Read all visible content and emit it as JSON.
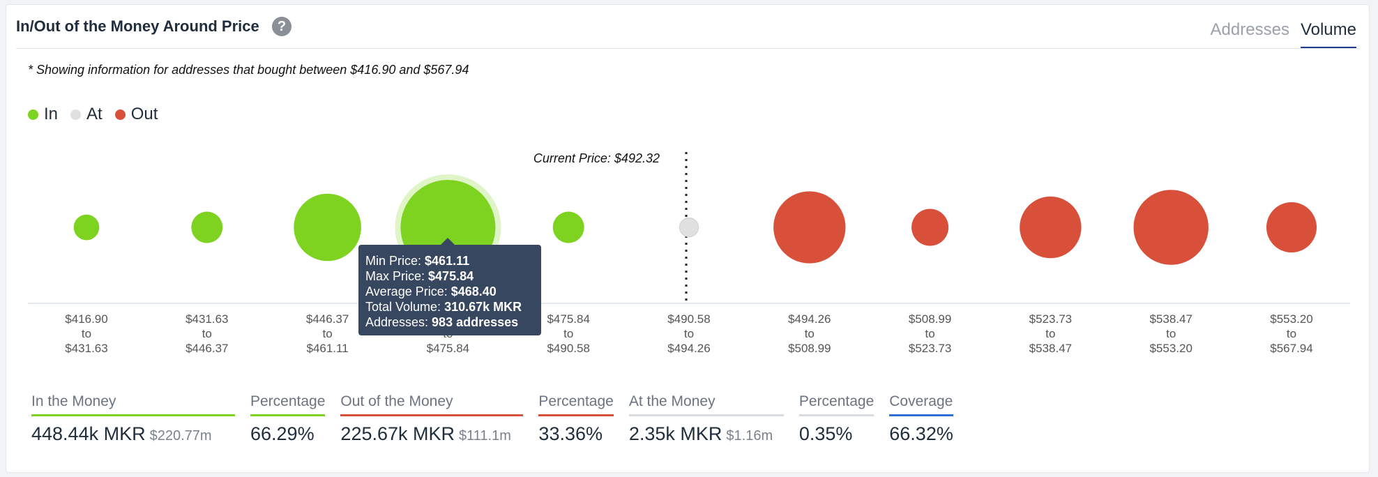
{
  "header": {
    "title": "In/Out of the Money Around Price",
    "help_icon": "?",
    "tabs": [
      "Addresses",
      "Volume"
    ],
    "active_tab": "Volume"
  },
  "note": "* Showing information for addresses that bought between $416.90 and $567.94",
  "legend": [
    {
      "label": "In",
      "color": "#7ed321"
    },
    {
      "label": "At",
      "color": "#e0e0e0"
    },
    {
      "label": "Out",
      "color": "#d9503a"
    }
  ],
  "current_price_label": "Current Price: $492.32",
  "tooltip": {
    "lines": [
      {
        "label": "Min Price: ",
        "value": "$461.11"
      },
      {
        "label": "Max Price: ",
        "value": "$475.84"
      },
      {
        "label": "Average Price: ",
        "value": "$468.40"
      },
      {
        "label": "Total Volume: ",
        "value": "310.67k MKR"
      },
      {
        "label": "Addresses: ",
        "value": "983 addresses"
      }
    ]
  },
  "chart_data": {
    "type": "scatter",
    "current_price": 492.32,
    "buckets": [
      {
        "from": "$416.90",
        "to": "$431.63",
        "status": "in",
        "relative_size": 0.27
      },
      {
        "from": "$431.63",
        "to": "$446.37",
        "status": "in",
        "relative_size": 0.33
      },
      {
        "from": "$446.37",
        "to": "$461.11",
        "status": "in",
        "relative_size": 0.71
      },
      {
        "from": "$461.11",
        "to": "$475.84",
        "status": "in",
        "relative_size": 1.0,
        "volume": "310.67k MKR",
        "addresses": "983 addresses",
        "avg_price": "$468.40",
        "highlighted": true
      },
      {
        "from": "$475.84",
        "to": "$490.58",
        "status": "in",
        "relative_size": 0.33
      },
      {
        "from": "$490.58",
        "to": "$494.26",
        "status": "at",
        "relative_size": 0.2
      },
      {
        "from": "$494.26",
        "to": "$508.99",
        "status": "out",
        "relative_size": 0.76
      },
      {
        "from": "$508.99",
        "to": "$523.73",
        "status": "out",
        "relative_size": 0.39
      },
      {
        "from": "$523.73",
        "to": "$538.47",
        "status": "out",
        "relative_size": 0.65
      },
      {
        "from": "$538.47",
        "to": "$553.20",
        "status": "out",
        "relative_size": 0.79
      },
      {
        "from": "$553.20",
        "to": "$567.94",
        "status": "out",
        "relative_size": 0.53
      }
    ],
    "colors": {
      "in": "#7ed321",
      "at": "#e0e0e0",
      "out": "#d9503a"
    }
  },
  "stats": [
    {
      "label": "In the Money",
      "value": "448.44k MKR",
      "sub": "$220.77m",
      "color": "#7ed321"
    },
    {
      "label": "Percentage",
      "value": "66.29%",
      "sub": "",
      "color": "#7ed321"
    },
    {
      "label": "Out of the Money",
      "value": "225.67k MKR",
      "sub": "$111.1m",
      "color": "#d9503a"
    },
    {
      "label": "Percentage",
      "value": "33.36%",
      "sub": "",
      "color": "#d9503a"
    },
    {
      "label": "At the Money",
      "value": "2.35k MKR",
      "sub": "$1.16m",
      "color": "#d8dbe0"
    },
    {
      "label": "Percentage",
      "value": "0.35%",
      "sub": "",
      "color": "#d8dbe0"
    },
    {
      "label": "Coverage",
      "value": "66.32%",
      "sub": "",
      "color": "#2f6fd6"
    }
  ]
}
